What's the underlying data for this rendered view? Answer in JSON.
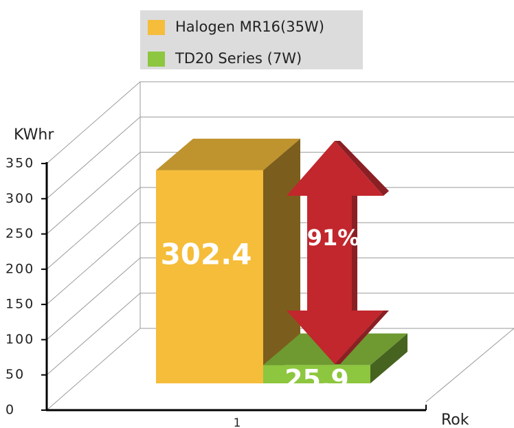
{
  "chart_data": {
    "type": "bar3d",
    "categories": [
      "1"
    ],
    "series": [
      {
        "name": "Halogen MR16(35W)",
        "color": "#f5bd3a",
        "values": [
          302.4
        ]
      },
      {
        "name": "TD20 Series (7W)",
        "color": "#8dc63f",
        "values": [
          25.9
        ]
      }
    ],
    "ylim": [
      0,
      350
    ],
    "yticks": [
      0,
      50,
      100,
      150,
      200,
      250,
      300,
      350
    ],
    "y_label": "KWhr",
    "x_label": "Rok",
    "annotation": "91%",
    "grid": true
  }
}
